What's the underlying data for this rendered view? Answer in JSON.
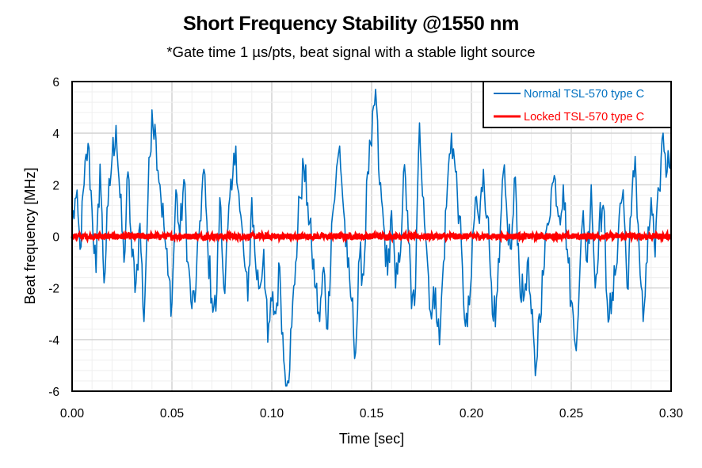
{
  "chart_data": {
    "type": "line",
    "title": "Short Frequency Stability @1550 nm",
    "subtitle": "*Gate time 1 µs/pts, beat signal with a stable light source",
    "xlabel": "Time [sec]",
    "ylabel": "Beat frequency [MHz]",
    "xlim": [
      0,
      0.3
    ],
    "ylim": [
      -6,
      6
    ],
    "xticks": [
      "0.00",
      "0.05",
      "0.10",
      "0.15",
      "0.20",
      "0.25",
      "0.30"
    ],
    "yticks": [
      "6",
      "4",
      "2",
      "0",
      "-2",
      "-4",
      "-6"
    ],
    "grid": true,
    "legend_position": "top-right",
    "series": [
      {
        "name": "Normal TSL-570 type C",
        "color": "#0070C0",
        "x_step": 0.002,
        "values": [
          0.5,
          1.5,
          -0.5,
          2.0,
          3.6,
          1.0,
          -1.4,
          2.8,
          -1.8,
          1.2,
          3.0,
          4.3,
          1.5,
          -1.0,
          2.5,
          -0.8,
          -1.8,
          0.5,
          -3.3,
          1.5,
          4.9,
          3.8,
          2.0,
          0.4,
          -1.5,
          -2.6,
          1.8,
          0.0,
          2.2,
          -1.0,
          -2.8,
          -2.0,
          0.6,
          2.6,
          -0.5,
          -2.4,
          -2.9,
          1.5,
          -2.0,
          0.3,
          1.8,
          3.5,
          1.0,
          -0.7,
          -2.5,
          1.5,
          -1.2,
          -2.0,
          -0.5,
          -4.1,
          -2.5,
          -3.0,
          -1.2,
          -4.8,
          -5.6,
          -3.5,
          -1.0,
          1.5,
          2.7,
          1.3,
          -0.5,
          -2.0,
          -3.3,
          -1.2,
          -3.6,
          0.5,
          2.0,
          3.5,
          1.0,
          -1.2,
          -2.5,
          -4.5,
          -0.8,
          -1.5,
          2.5,
          3.5,
          5.7,
          2.0,
          0.5,
          -1.5,
          1.0,
          -2.0,
          -1.0,
          2.5,
          1.0,
          -2.8,
          -2.0,
          4.4,
          1.5,
          -1.0,
          -3.2,
          -2.0,
          -4.2,
          -1.0,
          2.0,
          4.0,
          2.5,
          0.8,
          -2.5,
          -3.5,
          -1.5,
          1.5,
          0.5,
          2.6,
          0.8,
          -1.8,
          -3.5,
          -1.0,
          2.5,
          0.5,
          -0.5,
          2.3,
          -1.5,
          -2.5,
          -1.0,
          -3.0,
          -5.4,
          -3.0,
          -1.5,
          0.5,
          1.8,
          2.2,
          0.8,
          2.0,
          -0.5,
          -2.5,
          -4.2,
          -2.0,
          1.0,
          -1.0,
          2.0,
          -2.0,
          0.5,
          1.2,
          -2.5,
          -3.0,
          -1.5,
          0.8,
          1.8,
          -2.0,
          0.8,
          3.1,
          -0.5,
          -3.3,
          -1.0,
          1.5,
          -0.8,
          1.8,
          4.0,
          2.5,
          3.6
        ]
      },
      {
        "name": "Locked TSL-570 type C",
        "color": "#FF0000",
        "value": 0,
        "noise_amplitude": 0.12
      }
    ]
  }
}
